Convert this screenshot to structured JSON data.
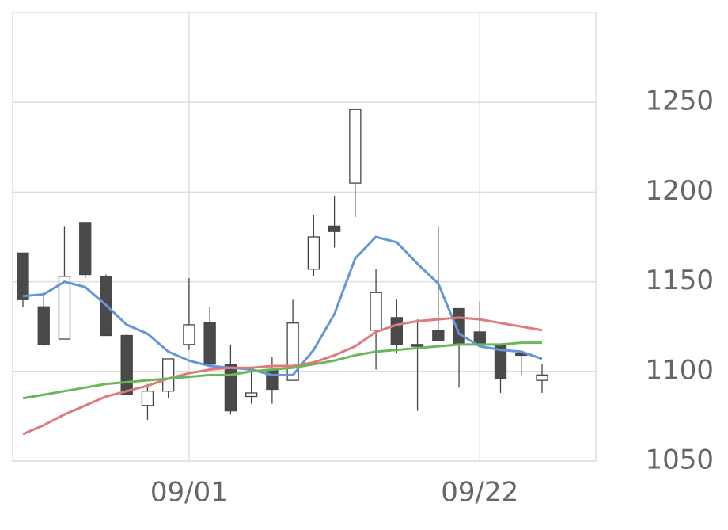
{
  "chart_data": {
    "type": "candlestick",
    "categories": [
      null,
      null,
      null,
      null,
      null,
      null,
      null,
      null,
      "09/01",
      null,
      null,
      null,
      null,
      null,
      null,
      null,
      null,
      null,
      null,
      null,
      null,
      null,
      "09/22",
      null,
      null,
      null
    ],
    "open": [
      1166,
      1136,
      1118,
      1183,
      1153,
      1120,
      1081,
      1089,
      1115,
      1127,
      1104,
      1086,
      1101,
      1095,
      1157,
      1181,
      1205,
      1123,
      1130,
      1115,
      1123,
      1135,
      1122,
      1115,
      1110,
      1095
    ],
    "high": [
      1166,
      1144,
      1181,
      1183,
      1154,
      1121,
      1093,
      1107,
      1152,
      1136,
      1115,
      1100,
      1108,
      1140,
      1187,
      1198,
      1246,
      1157,
      1140,
      1129,
      1181,
      1135,
      1139,
      1115,
      1110,
      1104
    ],
    "low": [
      1136,
      1114,
      1118,
      1152,
      1120,
      1087,
      1073,
      1085,
      1112,
      1104,
      1076,
      1082,
      1082,
      1095,
      1153,
      1169,
      1186,
      1101,
      1110,
      1078,
      1117,
      1091,
      1115,
      1088,
      1098,
      1088
    ],
    "close": [
      1140,
      1115,
      1153,
      1154,
      1120,
      1087,
      1089,
      1107,
      1126,
      1104,
      1078,
      1088,
      1090,
      1127,
      1175,
      1178,
      1246,
      1144,
      1115,
      1114,
      1117,
      1115,
      1115,
      1096,
      1109,
      1098
    ],
    "up_color": "#ffffff",
    "down_color": "#4a4a4a",
    "lines": [
      {
        "color": "#6495d6",
        "values": [
          1142,
          1143,
          1150,
          1147,
          1137,
          1126,
          1121,
          1111,
          1106,
          1103,
          1102,
          1101,
          1098,
          1098,
          1112,
          1132,
          1163,
          1175,
          1172,
          1160,
          1149,
          1121,
          1114,
          1112,
          1111,
          1107
        ]
      },
      {
        "color": "#e07a7a",
        "values": [
          1065,
          1070,
          1076,
          1081,
          1086,
          1089,
          1092,
          1096,
          1099,
          1101,
          1102,
          1102,
          1103,
          1103,
          1105,
          1109,
          1114,
          1122,
          1126,
          1128,
          1129,
          1130,
          1129,
          1127,
          1125,
          1123
        ]
      },
      {
        "color": "#6ab75a",
        "values": [
          1085,
          1087,
          1089,
          1091,
          1093,
          1094,
          1095,
          1096,
          1097,
          1098,
          1098,
          1100,
          1101,
          1102,
          1104,
          1106,
          1109,
          1111,
          1112,
          1113,
          1114,
          1115,
          1115,
          1115,
          1116,
          1116
        ]
      }
    ],
    "ylim": [
      1050,
      1300
    ],
    "yticks": [
      1050,
      1100,
      1150,
      1200,
      1250
    ],
    "grid": true
  }
}
